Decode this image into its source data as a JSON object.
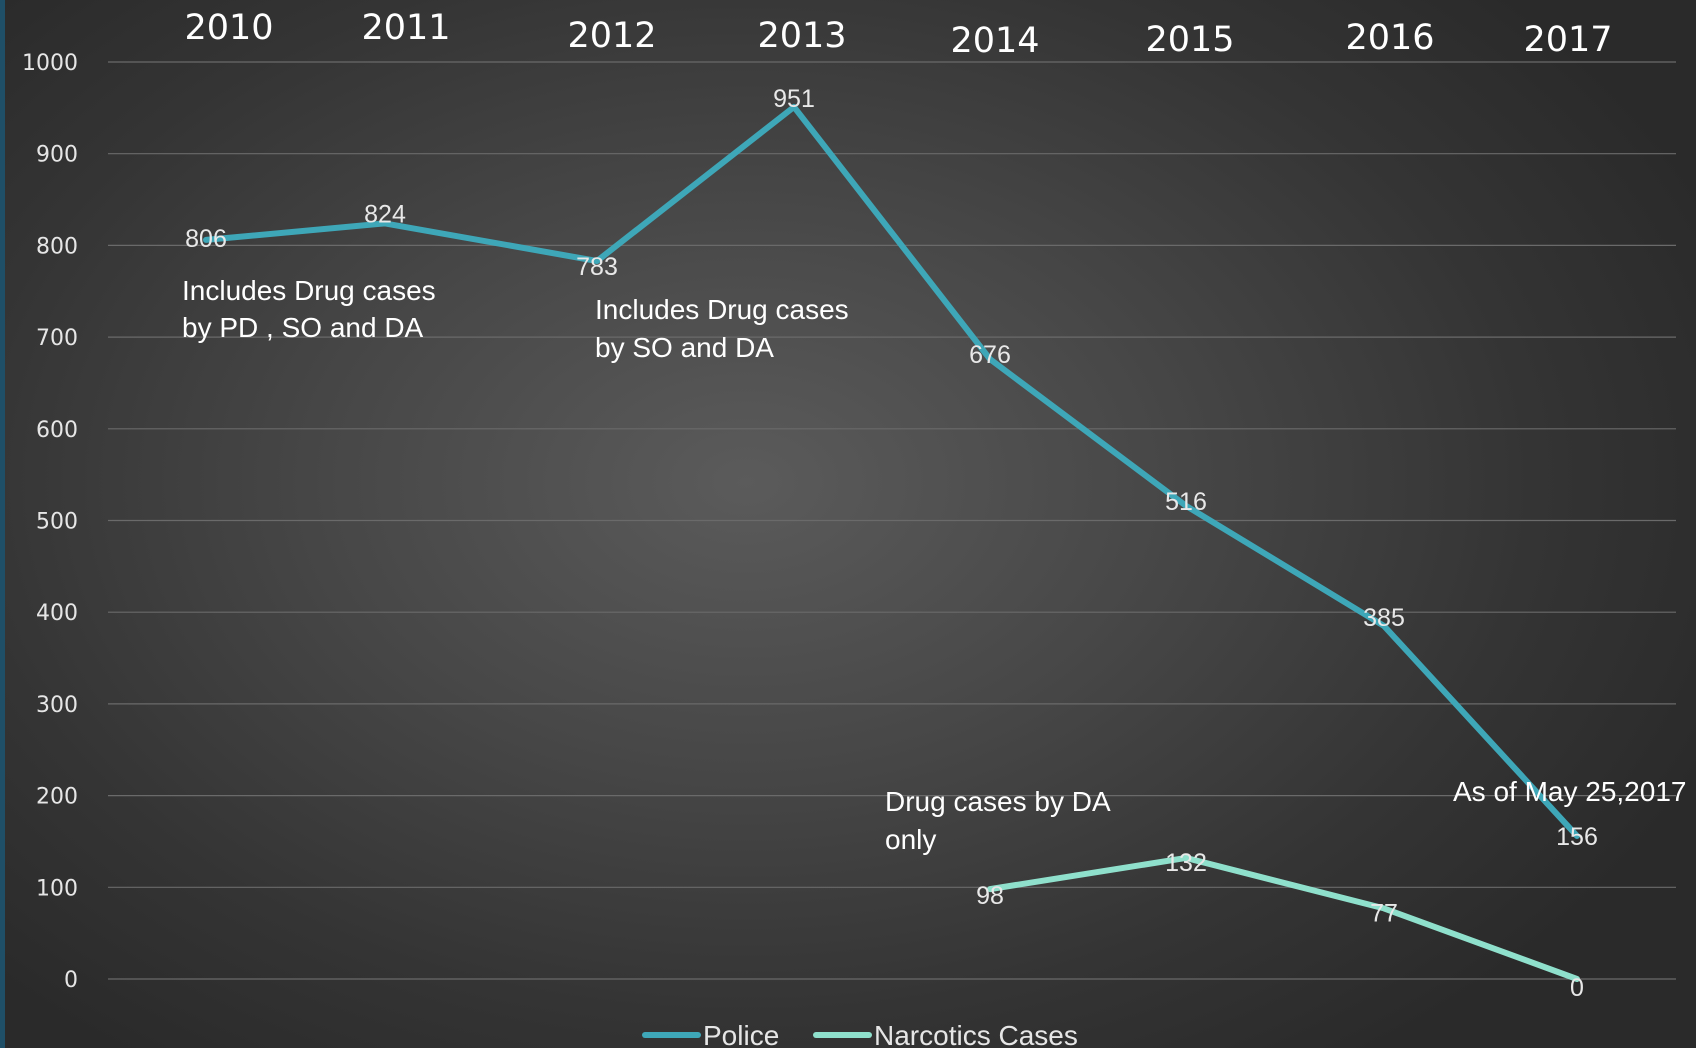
{
  "chart_data": {
    "type": "line",
    "categories": [
      "2010",
      "2011",
      "2012",
      "2013",
      "2014",
      "2015",
      "2016",
      "2017"
    ],
    "ylim": [
      0,
      1000
    ],
    "yticks": [
      0,
      100,
      200,
      300,
      400,
      500,
      600,
      700,
      800,
      900,
      1000
    ],
    "grid": true,
    "legend_position": "bottom",
    "series": [
      {
        "name": "Police",
        "color": "#3ea7b8",
        "values": [
          806,
          824,
          783,
          951,
          676,
          516,
          385,
          156
        ]
      },
      {
        "name": "Narcotics Cases",
        "color": "#8fe0cc",
        "values": [
          null,
          null,
          null,
          null,
          98,
          132,
          77,
          0
        ]
      }
    ],
    "annotations": [
      {
        "id": "note_pd_so_da",
        "lines": [
          "Includes Drug cases",
          "by PD , SO and DA"
        ]
      },
      {
        "id": "note_so_da",
        "lines": [
          "Includes Drug cases",
          "by SO and DA"
        ]
      },
      {
        "id": "note_da_only",
        "lines": [
          "Drug cases by DA",
          "only"
        ]
      },
      {
        "id": "note_as_of",
        "lines": [
          "As of May 25,2017"
        ]
      }
    ]
  }
}
